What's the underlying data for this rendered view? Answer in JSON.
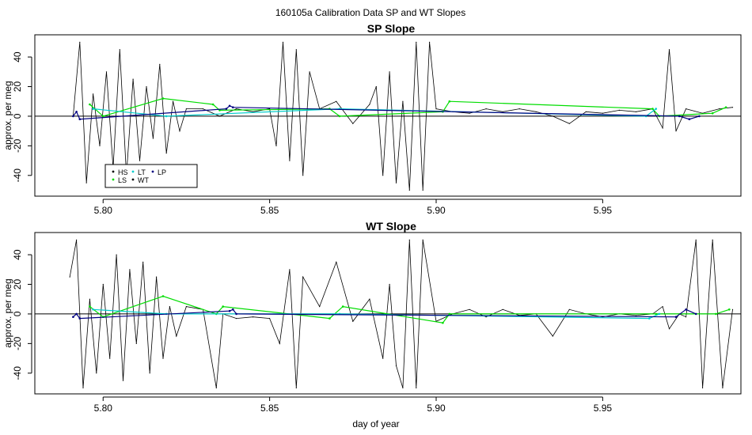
{
  "figure_title": "160105a   Calibration Data SP and WT Slopes",
  "chart_data": [
    {
      "type": "line",
      "title": "SP Slope",
      "xlabel": "",
      "ylabel": "approx. per meg",
      "xlim": [
        5.7795,
        5.9915
      ],
      "ylim": [
        -54,
        55
      ],
      "x_ticks": [
        5.8,
        5.85,
        5.9,
        5.95
      ],
      "x_tick_labels": [
        "5.80",
        "5.85",
        "5.90",
        "5.95"
      ],
      "y_ticks": [
        -40,
        -20,
        0,
        20,
        40
      ],
      "y_tick_labels": [
        "-40",
        "-20",
        "0",
        "20",
        "40"
      ],
      "reference_line_y": 0,
      "grid": false,
      "legend": {
        "position": "bottom-left",
        "entries": [
          {
            "label": "HS",
            "color": "#000000"
          },
          {
            "label": "LS",
            "color": "#00dd00"
          },
          {
            "label": "LT",
            "color": "#00cccc"
          },
          {
            "label": "WT",
            "color": "#000000"
          },
          {
            "label": "LP",
            "color": "#000080"
          }
        ]
      },
      "series": [
        {
          "name": "WT",
          "color": "#000000",
          "x": [
            5.791,
            5.793,
            5.795,
            5.797,
            5.799,
            5.801,
            5.803,
            5.805,
            5.807,
            5.809,
            5.811,
            5.813,
            5.815,
            5.817,
            5.819,
            5.821,
            5.823,
            5.825,
            5.83,
            5.835,
            5.84,
            5.845,
            5.85,
            5.852,
            5.854,
            5.856,
            5.858,
            5.86,
            5.862,
            5.865,
            5.87,
            5.875,
            5.88,
            5.882,
            5.884,
            5.886,
            5.888,
            5.89,
            5.892,
            5.894,
            5.896,
            5.898,
            5.9,
            5.905,
            5.91,
            5.915,
            5.92,
            5.925,
            5.93,
            5.935,
            5.94,
            5.945,
            5.95,
            5.955,
            5.96,
            5.965,
            5.968,
            5.97,
            5.972,
            5.975,
            5.98,
            5.985,
            5.989
          ],
          "y": [
            0,
            50,
            -45,
            15,
            -20,
            30,
            -35,
            45,
            -40,
            25,
            -30,
            20,
            -15,
            35,
            -25,
            10,
            -10,
            5,
            5,
            0,
            5,
            3,
            5,
            -20,
            50,
            -30,
            45,
            -40,
            30,
            5,
            10,
            -5,
            8,
            20,
            -40,
            30,
            -45,
            10,
            -50,
            50,
            -50,
            50,
            5,
            3,
            2,
            5,
            3,
            5,
            3,
            0,
            -5,
            3,
            2,
            4,
            3,
            5,
            -8,
            45,
            -10,
            5,
            2,
            5,
            6
          ]
        },
        {
          "name": "LS",
          "color": "#00dd00",
          "x": [
            5.796,
            5.8,
            5.818,
            5.833,
            5.835,
            5.868,
            5.871,
            5.902,
            5.904,
            5.965,
            5.967,
            5.983,
            5.987
          ],
          "y": [
            8,
            0,
            12,
            8,
            4,
            5,
            0,
            3,
            10,
            5,
            0,
            2,
            6
          ]
        },
        {
          "name": "LT",
          "color": "#00cccc",
          "x": [
            5.797,
            5.819,
            5.871,
            5.963,
            5.966
          ],
          "y": [
            5,
            0,
            5,
            0,
            5
          ]
        },
        {
          "name": "LP",
          "color": "#000080",
          "x": [
            5.791,
            5.792,
            5.793,
            5.837,
            5.838,
            5.839,
            5.973,
            5.976,
            5.979
          ],
          "y": [
            0,
            3,
            -2,
            5,
            7,
            6,
            0,
            -2,
            0
          ]
        }
      ]
    },
    {
      "type": "line",
      "title": "WT Slope",
      "xlabel": "day of year",
      "ylabel": "approx. per meg",
      "xlim": [
        5.7795,
        5.9915
      ],
      "ylim": [
        -54,
        55
      ],
      "x_ticks": [
        5.8,
        5.85,
        5.9,
        5.95
      ],
      "x_tick_labels": [
        "5.80",
        "5.85",
        "5.90",
        "5.95"
      ],
      "y_ticks": [
        -40,
        -20,
        0,
        20,
        40
      ],
      "y_tick_labels": [
        "-40",
        "-20",
        "0",
        "20",
        "40"
      ],
      "reference_line_y": 0,
      "grid": false,
      "series": [
        {
          "name": "WT",
          "color": "#000000",
          "x": [
            5.79,
            5.792,
            5.794,
            5.796,
            5.798,
            5.8,
            5.802,
            5.804,
            5.806,
            5.808,
            5.81,
            5.812,
            5.814,
            5.816,
            5.818,
            5.82,
            5.822,
            5.825,
            5.83,
            5.834,
            5.836,
            5.84,
            5.845,
            5.85,
            5.853,
            5.856,
            5.858,
            5.86,
            5.865,
            5.87,
            5.875,
            5.88,
            5.884,
            5.886,
            5.888,
            5.89,
            5.892,
            5.894,
            5.896,
            5.9,
            5.905,
            5.91,
            5.915,
            5.92,
            5.925,
            5.93,
            5.935,
            5.94,
            5.945,
            5.95,
            5.955,
            5.96,
            5.965,
            5.968,
            5.97,
            5.973,
            5.975,
            5.978,
            5.98,
            5.983,
            5.986,
            5.989
          ],
          "y": [
            25,
            50,
            -50,
            10,
            -40,
            20,
            -30,
            40,
            -45,
            30,
            -20,
            35,
            -40,
            25,
            -30,
            5,
            -15,
            5,
            3,
            -50,
            0,
            -3,
            -2,
            -3,
            -20,
            30,
            -50,
            25,
            5,
            35,
            -5,
            10,
            -30,
            20,
            -35,
            -50,
            50,
            -50,
            50,
            -5,
            0,
            3,
            -2,
            3,
            -1,
            0,
            -15,
            3,
            0,
            -2,
            0,
            -1,
            0,
            5,
            -10,
            0,
            -2,
            50,
            -50,
            50,
            -50,
            3
          ]
        },
        {
          "name": "LS",
          "color": "#00dd00",
          "x": [
            5.796,
            5.8,
            5.818,
            5.834,
            5.836,
            5.868,
            5.872,
            5.902,
            5.904,
            5.966,
            5.984,
            5.988
          ],
          "y": [
            5,
            -2,
            12,
            0,
            5,
            -3,
            5,
            -6,
            0,
            0,
            0,
            3
          ]
        },
        {
          "name": "LT",
          "color": "#00cccc",
          "x": [
            5.797,
            5.819,
            5.871,
            5.964,
            5.967
          ],
          "y": [
            3,
            0,
            0,
            -3,
            0
          ]
        },
        {
          "name": "LP",
          "color": "#000080",
          "x": [
            5.791,
            5.792,
            5.793,
            5.838,
            5.839,
            5.84,
            5.972,
            5.975,
            5.978
          ],
          "y": [
            -2,
            0,
            -3,
            2,
            3,
            0,
            -2,
            3,
            0
          ]
        }
      ]
    }
  ]
}
